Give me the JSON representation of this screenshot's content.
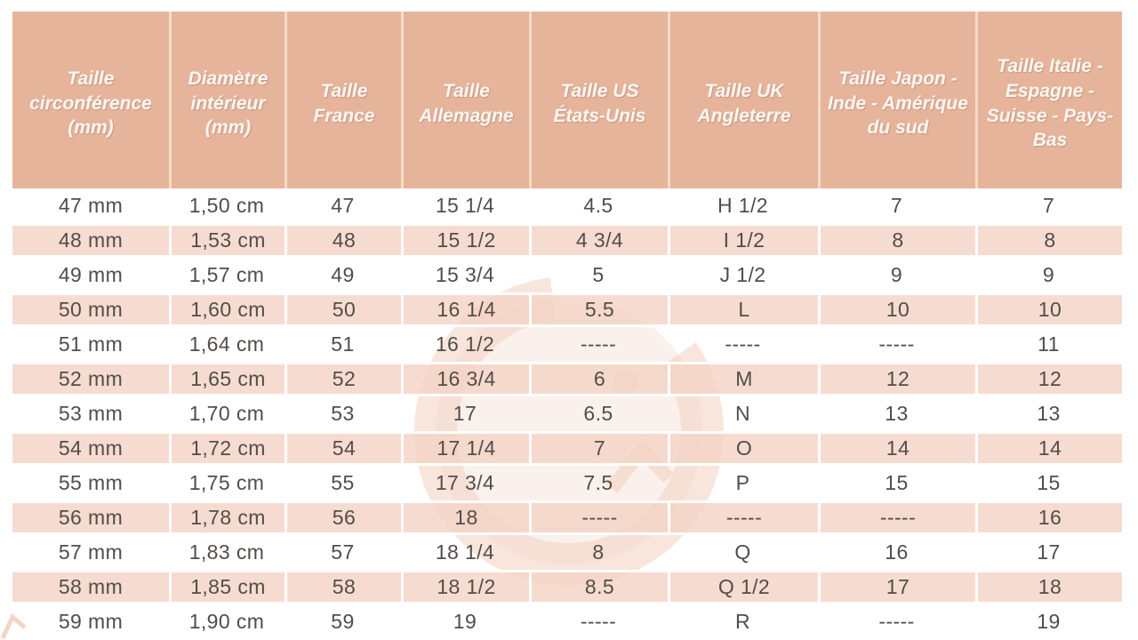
{
  "colors": {
    "header_bg": "#e6b49b",
    "header_text": "#fcf7f2",
    "header_sep": "#f3dcc9",
    "row_alt_bg": "rgba(244,211,196,0.8)",
    "row_sep": "#ffffff",
    "body_text": "#534d49",
    "watermark": "#f2cdbb"
  },
  "watermark": {
    "icon": "g-logo-watermark"
  },
  "table": {
    "columns": [
      "Taille circonférence (mm)",
      "Diamètre intérieur (mm)",
      "Taille France",
      "Taille Allemagne",
      "Taille US États-Unis",
      "Taille UK Angleterre",
      "Taille Japon - Inde - Amérique du sud",
      "Taille Italie - Espagne - Suisse - Pays-Bas"
    ],
    "rows": [
      [
        "47 mm",
        "1,50 cm",
        "47",
        "15 1/4",
        "4.5",
        "H 1/2",
        "7",
        "7"
      ],
      [
        "48 mm",
        "1,53 cm",
        "48",
        "15 1/2",
        "4 3/4",
        "I 1/2",
        "8",
        "8"
      ],
      [
        "49 mm",
        "1,57 cm",
        "49",
        "15 3/4",
        "5",
        "J 1/2",
        "9",
        "9"
      ],
      [
        "50 mm",
        "1,60 cm",
        "50",
        "16 1/4",
        "5.5",
        "L",
        "10",
        "10"
      ],
      [
        "51 mm",
        "1,64 cm",
        "51",
        "16 1/2",
        "-----",
        "-----",
        "-----",
        "11"
      ],
      [
        "52 mm",
        "1,65 cm",
        "52",
        "16 3/4",
        "6",
        "M",
        "12",
        "12"
      ],
      [
        "53 mm",
        "1,70 cm",
        "53",
        "17",
        "6.5",
        "N",
        "13",
        "13"
      ],
      [
        "54 mm",
        "1,72 cm",
        "54",
        "17 1/4",
        "7",
        "O",
        "14",
        "14"
      ],
      [
        "55 mm",
        "1,75 cm",
        "55",
        "17 3/4",
        "7.5",
        "P",
        "15",
        "15"
      ],
      [
        "56 mm",
        "1,78 cm",
        "56",
        "18",
        "-----",
        "-----",
        "-----",
        "16"
      ],
      [
        "57 mm",
        "1,83 cm",
        "57",
        "18 1/4",
        "8",
        "Q",
        "16",
        "17"
      ],
      [
        "58 mm",
        "1,85 cm",
        "58",
        "18 1/2",
        "8.5",
        "Q 1/2",
        "17",
        "18"
      ],
      [
        "59 mm",
        "1,90 cm",
        "59",
        "19",
        "-----",
        "R",
        "-----",
        "19"
      ]
    ]
  }
}
